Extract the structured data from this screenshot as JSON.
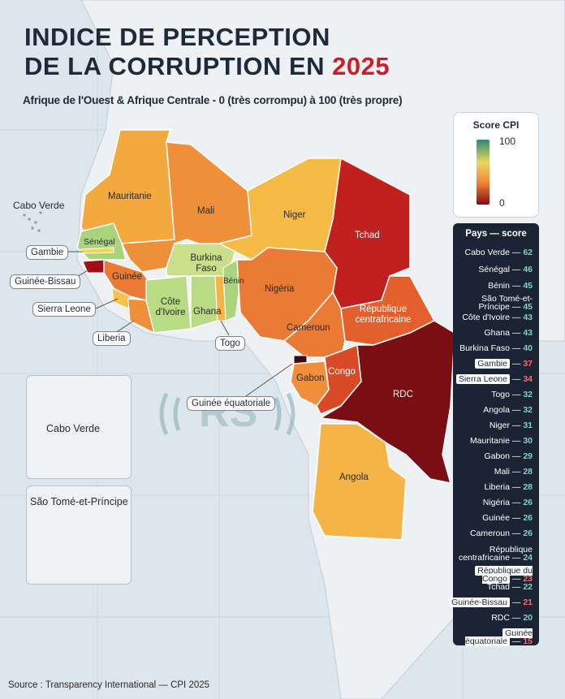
{
  "title": {
    "line1": "INDICE DE PERCEPTION",
    "line2": "DE LA CORRUPTION EN",
    "year": "2025",
    "subtitle": "Afrique de l'Ouest & Afrique Centrale - 0 (très corrompu) à 100 (très propre)"
  },
  "legend": {
    "title": "Score CPI",
    "max": "100",
    "min": "0"
  },
  "panel": {
    "title": "Pays — score",
    "separator": "—",
    "rows": [
      {
        "name": "Cabo Verde",
        "score": "62"
      },
      {
        "name": "Sénégal",
        "score": "46"
      },
      {
        "name": "Bénin",
        "score": "45"
      },
      {
        "name": "São Tomé-et-Príncipe",
        "score": "45"
      },
      {
        "name": "Côte d'Ivoire",
        "score": "43"
      },
      {
        "name": "Ghana",
        "score": "43"
      },
      {
        "name": "Burkina Faso",
        "score": "40"
      },
      {
        "name": "Gambie",
        "score": "37"
      },
      {
        "name": "Sierra Leone",
        "score": "34"
      },
      {
        "name": "Togo",
        "score": "32"
      },
      {
        "name": "Angola",
        "score": "32"
      },
      {
        "name": "Niger",
        "score": "31"
      },
      {
        "name": "Mauritanie",
        "score": "30"
      },
      {
        "name": "Gabon",
        "score": "29"
      },
      {
        "name": "Mali",
        "score": "28"
      },
      {
        "name": "Liberia",
        "score": "28"
      },
      {
        "name": "Nigéria",
        "score": "26"
      },
      {
        "name": "Guinée",
        "score": "26"
      },
      {
        "name": "Cameroun",
        "score": "26"
      },
      {
        "name": "République centrafricaine",
        "score": "24"
      },
      {
        "name": "République du Congo",
        "score": "23"
      },
      {
        "name": "Tchad",
        "score": "22"
      },
      {
        "name": "Guinée-Bissau",
        "score": "21"
      },
      {
        "name": "RDC",
        "score": "20"
      },
      {
        "name": "Guinée équatoriale",
        "score": "15"
      }
    ]
  },
  "map_labels": {
    "mauritanie": "Mauritanie",
    "mali": "Mali",
    "niger": "Niger",
    "tchad": "Tchad",
    "senegal": "Sénégal",
    "burkina": "Burkina Faso",
    "benin": "Bénin",
    "guinee": "Guinée",
    "cote": "Côte d'Ivoire",
    "ghana": "Ghana",
    "nigeria": "Nigéria",
    "rca": "République centrafricaine",
    "cameroun": "Cameroun",
    "gabon": "Gabon",
    "congo": "Congo",
    "rdc": "RDC",
    "angola": "Angola",
    "cabo_verde": "Cabo Verde",
    "gambie": "Gambie",
    "guinee_bissau": "Guinée-Bissau",
    "sierra_leone": "Sierra Leone",
    "liberia": "Liberia",
    "togo": "Togo",
    "guinee_eq": "Guinée équatoriale",
    "inset_cabo_verde": "Cabo Verde",
    "inset_sao_tome": "São Tomé-et-Príncipe"
  },
  "colors": {
    "score_62": "#6fbf72",
    "score_45": "#a9d47c",
    "score_43": "#b8db84",
    "score_40": "#c9df8a",
    "score_37": "#f4d55a",
    "score_34": "#f6c24c",
    "score_32": "#f7b446",
    "score_31": "#f6ba47",
    "score_30": "#f4a93e",
    "score_28": "#ef8f3a",
    "score_26": "#ea7a34",
    "score_24": "#e3602c",
    "score_23": "#d84a26",
    "score_22": "#c0201e",
    "score_21": "#9e1016",
    "score_20": "#7a0e14",
    "score_15": "#3a0c10"
  },
  "watermark": "RS",
  "source": "Source : Transparency International — CPI 2025"
}
